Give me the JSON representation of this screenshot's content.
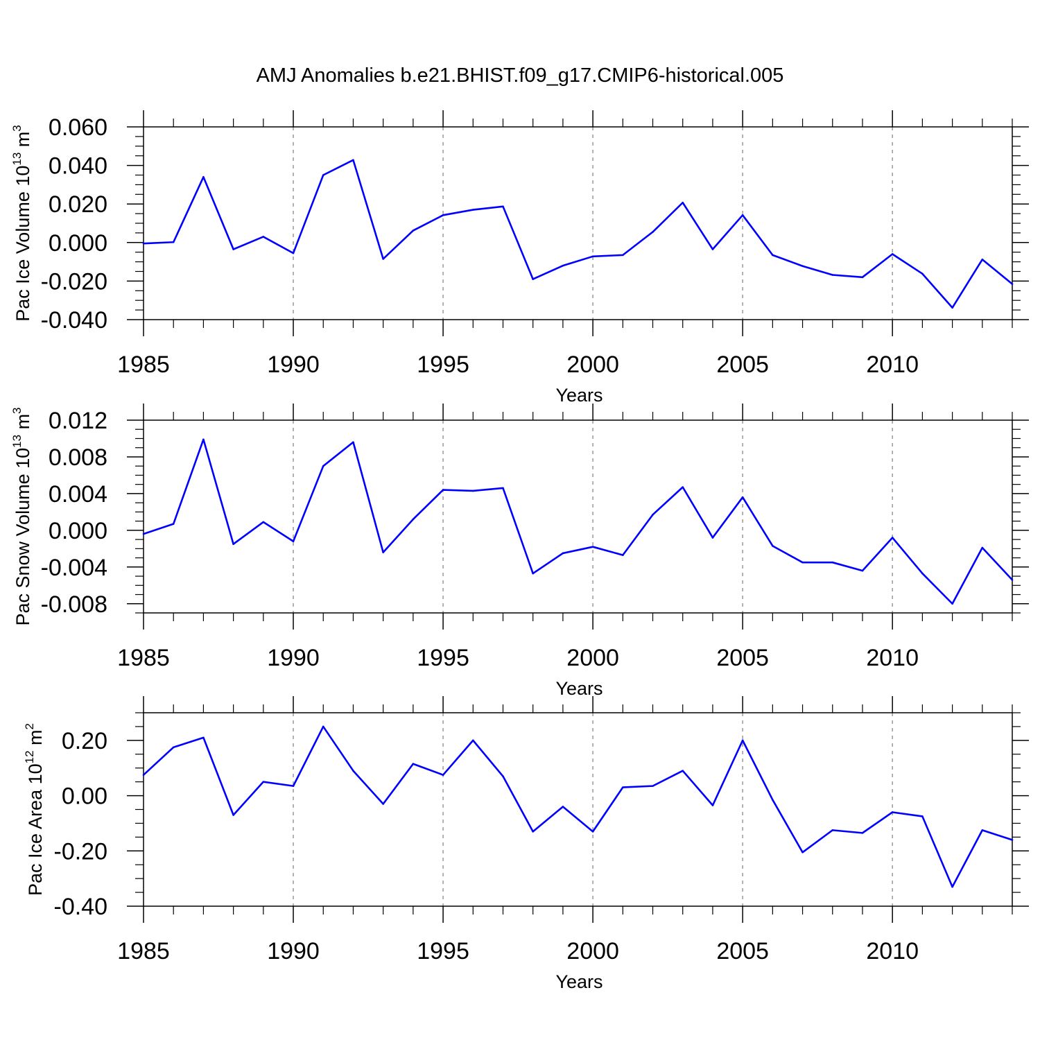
{
  "figure": {
    "title": "AMJ Anomalies b.e21.BHIST.f09_g17.CMIP6-historical.005",
    "line_color": "#0000ff",
    "grid_color": "#999999"
  },
  "chart_data": [
    {
      "type": "line",
      "ylabel": {
        "prefix": "Pac Ice Volume 10",
        "exponent": "13",
        "unit": " m",
        "unit_exponent": "3"
      },
      "xlabel": "Years",
      "xlim": [
        1985,
        2014
      ],
      "ylim": [
        -0.04,
        0.06
      ],
      "x_ticks": [
        1985,
        1990,
        1995,
        2000,
        2005,
        2010
      ],
      "x_tick_labels": [
        "1985",
        "1990",
        "1995",
        "2000",
        "2005",
        "2010"
      ],
      "y_ticks": [
        -0.04,
        -0.02,
        0.0,
        0.02,
        0.04,
        0.06
      ],
      "y_tick_labels": [
        "-0.040",
        "-0.020",
        "0.000",
        "0.020",
        "0.040",
        "0.060"
      ],
      "y_minor_step": 0.005,
      "grid_x": [
        1990,
        1995,
        2000,
        2005,
        2010
      ],
      "x": [
        1985,
        1986,
        1987,
        1988,
        1989,
        1990,
        1991,
        1992,
        1993,
        1994,
        1995,
        1996,
        1997,
        1998,
        1999,
        2000,
        2001,
        2002,
        2003,
        2004,
        2005,
        2006,
        2007,
        2008,
        2009,
        2010,
        2011,
        2012,
        2013,
        2014
      ],
      "values": [
        -0.0005,
        0.0002,
        0.034,
        -0.0035,
        0.003,
        -0.0055,
        0.035,
        0.0428,
        -0.0085,
        0.0062,
        0.0142,
        0.017,
        0.0187,
        -0.019,
        -0.012,
        -0.0072,
        -0.0065,
        0.0055,
        0.0207,
        -0.0035,
        0.0142,
        -0.0065,
        -0.0122,
        -0.0168,
        -0.018,
        -0.006,
        -0.0162,
        -0.0338,
        -0.0088,
        -0.0215
      ]
    },
    {
      "type": "line",
      "ylabel": {
        "prefix": "Pac Snow Volume 10",
        "exponent": "13",
        "unit": " m",
        "unit_exponent": "3"
      },
      "xlabel": "Years",
      "xlim": [
        1985,
        2014
      ],
      "ylim": [
        -0.009,
        0.012
      ],
      "x_ticks": [
        1985,
        1990,
        1995,
        2000,
        2005,
        2010
      ],
      "x_tick_labels": [
        "1985",
        "1990",
        "1995",
        "2000",
        "2005",
        "2010"
      ],
      "y_ticks": [
        -0.008,
        -0.004,
        0.0,
        0.004,
        0.008,
        0.012
      ],
      "y_tick_labels": [
        "-0.008",
        "-0.004",
        "0.000",
        "0.004",
        "0.008",
        "0.012"
      ],
      "y_minor_step": 0.001,
      "grid_x": [
        1990,
        1995,
        2000,
        2005,
        2010
      ],
      "x": [
        1985,
        1986,
        1987,
        1988,
        1989,
        1990,
        1991,
        1992,
        1993,
        1994,
        1995,
        1996,
        1997,
        1998,
        1999,
        2000,
        2001,
        2002,
        2003,
        2004,
        2005,
        2006,
        2007,
        2008,
        2009,
        2010,
        2011,
        2012,
        2013,
        2014
      ],
      "values": [
        -0.0004,
        0.0007,
        0.0099,
        -0.0015,
        0.0009,
        -0.0012,
        0.007,
        0.0096,
        -0.0024,
        0.0012,
        0.0044,
        0.0043,
        0.0046,
        -0.0047,
        -0.0025,
        -0.0018,
        -0.0027,
        0.0017,
        0.0047,
        -0.0008,
        0.0036,
        -0.0017,
        -0.0035,
        -0.0035,
        -0.0044,
        -0.0008,
        -0.0047,
        -0.008,
        -0.0019,
        -0.0054
      ]
    },
    {
      "type": "line",
      "ylabel": {
        "prefix": "Pac Ice Area 10",
        "exponent": "12",
        "unit": " m",
        "unit_exponent": "2"
      },
      "xlabel": "Years",
      "xlim": [
        1985,
        2014
      ],
      "ylim": [
        -0.4,
        0.3
      ],
      "x_ticks": [
        1985,
        1990,
        1995,
        2000,
        2005,
        2010
      ],
      "x_tick_labels": [
        "1985",
        "1990",
        "1995",
        "2000",
        "2005",
        "2010"
      ],
      "y_ticks": [
        -0.4,
        -0.2,
        0.0,
        0.2
      ],
      "y_tick_labels": [
        "-0.40",
        "-0.20",
        "0.00",
        "0.20"
      ],
      "y_minor_step": 0.05,
      "grid_x": [
        1990,
        1995,
        2000,
        2005,
        2010
      ],
      "x": [
        1985,
        1986,
        1987,
        1988,
        1989,
        1990,
        1991,
        1992,
        1993,
        1994,
        1995,
        1996,
        1997,
        1998,
        1999,
        2000,
        2001,
        2002,
        2003,
        2004,
        2005,
        2006,
        2007,
        2008,
        2009,
        2010,
        2011,
        2012,
        2013,
        2014
      ],
      "values": [
        0.075,
        0.175,
        0.21,
        -0.07,
        0.05,
        0.035,
        0.25,
        0.09,
        -0.03,
        0.115,
        0.075,
        0.2,
        0.07,
        -0.13,
        -0.04,
        -0.13,
        0.03,
        0.035,
        0.09,
        -0.035,
        0.2,
        -0.015,
        -0.205,
        -0.125,
        -0.135,
        -0.06,
        -0.075,
        -0.33,
        -0.125,
        -0.16
      ]
    }
  ]
}
